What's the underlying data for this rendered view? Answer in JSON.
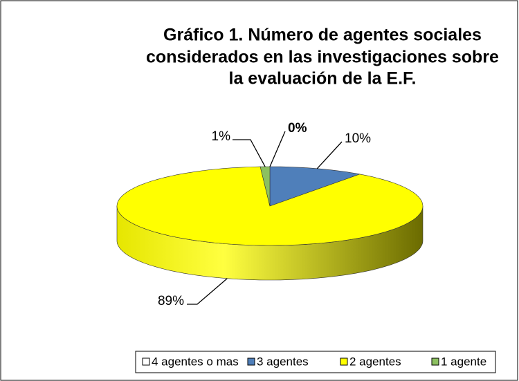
{
  "chart_data": {
    "type": "pie3d",
    "title": [
      "Gráfico 1. Número de agentes sociales",
      "considerados en las investigaciones sobre",
      "la evaluación de la E.F."
    ],
    "categories": [
      "4 agentes o mas",
      "3 agentes",
      "2 agentes",
      "1 agente"
    ],
    "values": [
      0,
      10,
      89,
      1
    ],
    "value_labels": [
      "0%",
      "10%",
      "89%",
      "1%"
    ],
    "colors": [
      "#ffffff",
      "#4f7fba",
      "#ffff00",
      "#8cc060"
    ],
    "legend": "bottom"
  }
}
